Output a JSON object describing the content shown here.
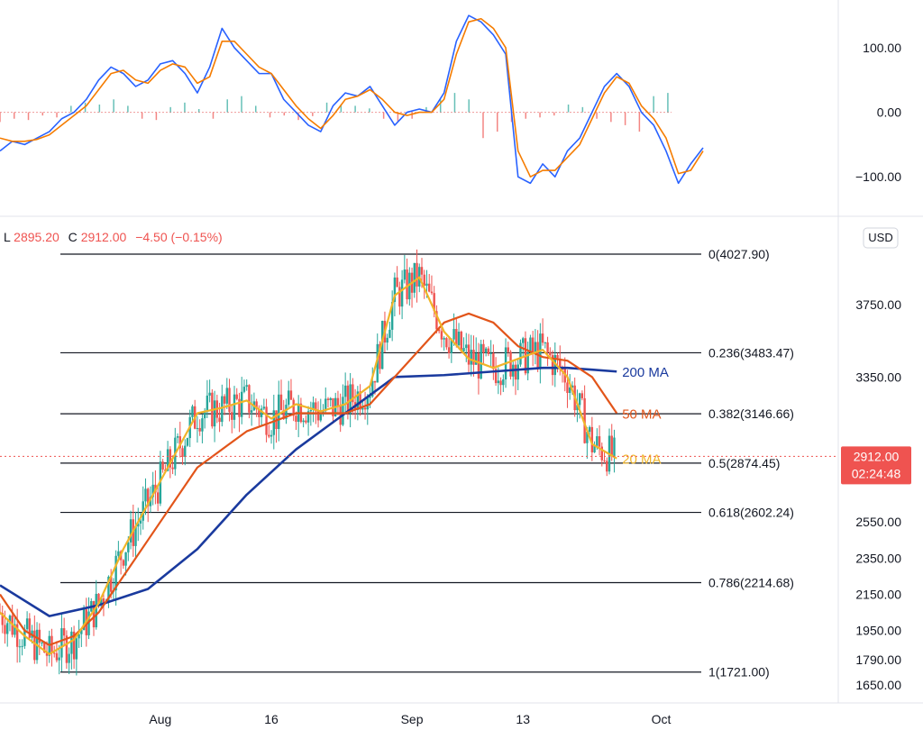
{
  "header": {
    "low_key": "L",
    "low_value": "2895.20",
    "close_key": "C",
    "close_value": "2912.00",
    "change": "−4.50 (−0.15%)"
  },
  "currency": "USD",
  "price_tag": {
    "value": "2912.00",
    "countdown": "02:24:48",
    "color": "#ef5350"
  },
  "chart_data": [
    {
      "type": "line",
      "panel": "macd",
      "ylim": [
        -150,
        160
      ],
      "y_ticks": [
        "100.00",
        "0.00",
        "−100.00"
      ],
      "y_tick_values": [
        100,
        0,
        -100
      ],
      "x": [
        0,
        5,
        10,
        15,
        20,
        25,
        30,
        35,
        40,
        45,
        50,
        55,
        60,
        65,
        70,
        75,
        80,
        85,
        90,
        95,
        100,
        105,
        110,
        115,
        120,
        125,
        130,
        135,
        140,
        145,
        150,
        155,
        160,
        165,
        170,
        175,
        180,
        185,
        190
      ],
      "series": [
        {
          "color": "#2962ff",
          "values": [
            -60,
            -45,
            -50,
            -40,
            -30,
            -10,
            0,
            20,
            50,
            70,
            60,
            40,
            50,
            75,
            80,
            60,
            30,
            70,
            130,
            100,
            80,
            60,
            60,
            20,
            0,
            -20,
            -30,
            10,
            30,
            25,
            40,
            10,
            -20,
            0,
            5,
            0,
            30,
            110,
            150
          ]
        },
        {
          "color": "#f57c00",
          "values": [
            -40,
            -45,
            -45,
            -42,
            -35,
            -20,
            -5,
            10,
            35,
            60,
            65,
            50,
            45,
            65,
            75,
            70,
            45,
            55,
            110,
            110,
            90,
            70,
            60,
            35,
            10,
            -10,
            -25,
            -5,
            20,
            25,
            35,
            20,
            0,
            -5,
            0,
            0,
            20,
            90,
            140
          ]
        }
      ],
      "series_tail": [
        {
          "color": "#2962ff",
          "x": [
            195,
            200,
            205,
            210,
            215,
            220,
            225,
            230,
            235,
            240,
            245,
            250,
            255,
            260,
            265,
            270,
            275,
            280,
            285
          ],
          "values": [
            140,
            120,
            90,
            -100,
            -110,
            -80,
            -100,
            -60,
            -40,
            0,
            40,
            60,
            40,
            0,
            -20,
            -60,
            -110,
            -80,
            -55
          ]
        },
        {
          "color": "#f57c00",
          "x": [
            195,
            200,
            205,
            210,
            215,
            220,
            225,
            230,
            235,
            240,
            245,
            250,
            255,
            260,
            265,
            270,
            275,
            280,
            285
          ],
          "values": [
            145,
            130,
            100,
            -60,
            -100,
            -90,
            -90,
            -70,
            -50,
            -10,
            30,
            55,
            45,
            10,
            -10,
            -40,
            -95,
            -90,
            -60
          ]
        }
      ],
      "histogram_x": [
        0,
        6,
        12,
        18,
        24,
        30,
        36,
        42,
        48,
        54,
        60,
        66,
        72,
        78,
        84,
        90,
        96,
        102,
        108,
        114,
        120,
        126,
        132,
        138,
        144,
        150,
        156,
        162,
        168,
        174,
        180,
        186,
        192,
        198,
        204,
        210,
        216,
        222,
        228,
        234,
        240,
        246,
        252,
        258,
        264,
        270,
        276,
        282
      ],
      "histogram": [
        -15,
        -10,
        -12,
        -5,
        -8,
        10,
        15,
        12,
        20,
        10,
        -10,
        -12,
        8,
        15,
        5,
        -10,
        20,
        25,
        10,
        -8,
        -5,
        -12,
        -6,
        15,
        12,
        10,
        6,
        -10,
        -15,
        -10,
        8,
        20,
        30,
        20,
        -40,
        -30,
        -15,
        -10,
        -8,
        -5,
        12,
        8,
        -10,
        -15,
        -20,
        -30,
        25,
        30
      ]
    },
    {
      "type": "line",
      "panel": "price",
      "ylim": [
        1650,
        4027.9
      ],
      "y_ticks": [
        "3750.00",
        "3350.00",
        "2550.00",
        "2350.00",
        "2150.00",
        "1950.00",
        "1790.00",
        "1650.00"
      ],
      "y_tick_values": [
        3750,
        3350,
        2550,
        2350,
        2150,
        1950,
        1790,
        1650
      ],
      "x_tick_labels": [
        "Aug",
        "16",
        "Sep",
        "13",
        "Oct"
      ],
      "x_tick_positions": [
        65,
        110,
        167,
        212,
        268
      ],
      "fib_levels": [
        {
          "label": "0(4027.90)",
          "value": 4027.9
        },
        {
          "label": "0.236(3483.47)",
          "value": 3483.47
        },
        {
          "label": "0.382(3146.66)",
          "value": 3146.66
        },
        {
          "label": "0.5(2874.45)",
          "value": 2874.45
        },
        {
          "label": "0.618(2602.24)",
          "value": 2602.24
        },
        {
          "label": "0.786(2214.68)",
          "value": 2214.68
        },
        {
          "label": "1(1721.00)",
          "value": 1721.0
        }
      ],
      "ma_labels": [
        {
          "text": "200 MA",
          "color": "#1a3a9e"
        },
        {
          "text": "50 MA",
          "color": "#e2551a"
        },
        {
          "text": "20 MA",
          "color": "#f0b429"
        }
      ],
      "series": [
        {
          "color": "#1a3a9e",
          "x": [
            0,
            20,
            40,
            60,
            80,
            100,
            120,
            140,
            160,
            180,
            200,
            220,
            230,
            240,
            250
          ],
          "values": [
            2200,
            2030,
            2090,
            2180,
            2400,
            2700,
            2950,
            3150,
            3350,
            3360,
            3380,
            3400,
            3400,
            3390,
            3380
          ]
        },
        {
          "color": "#e2551a",
          "x": [
            0,
            10,
            20,
            30,
            40,
            60,
            80,
            100,
            120,
            140,
            150,
            160,
            170,
            180,
            190,
            200,
            210,
            220,
            230,
            240,
            250
          ],
          "values": [
            2150,
            1950,
            1870,
            1920,
            2050,
            2450,
            2850,
            3050,
            3150,
            3150,
            3200,
            3350,
            3500,
            3650,
            3700,
            3650,
            3520,
            3460,
            3440,
            3350,
            3150
          ]
        },
        {
          "color": "#f0b429",
          "x": [
            0,
            10,
            20,
            30,
            40,
            50,
            60,
            70,
            80,
            90,
            100,
            110,
            120,
            130,
            140,
            150,
            160,
            170,
            180,
            190,
            200,
            210,
            220,
            230,
            240,
            250
          ],
          "values": [
            2050,
            1920,
            1820,
            1900,
            2100,
            2400,
            2650,
            2900,
            3150,
            3180,
            3220,
            3120,
            3200,
            3160,
            3200,
            3300,
            3800,
            3900,
            3600,
            3450,
            3400,
            3450,
            3500,
            3350,
            2980,
            2900
          ]
        }
      ],
      "candles": {
        "count": 250,
        "up_color": "#26a69a",
        "down_color": "#ef5350"
      },
      "last_close": 2912.0
    }
  ]
}
